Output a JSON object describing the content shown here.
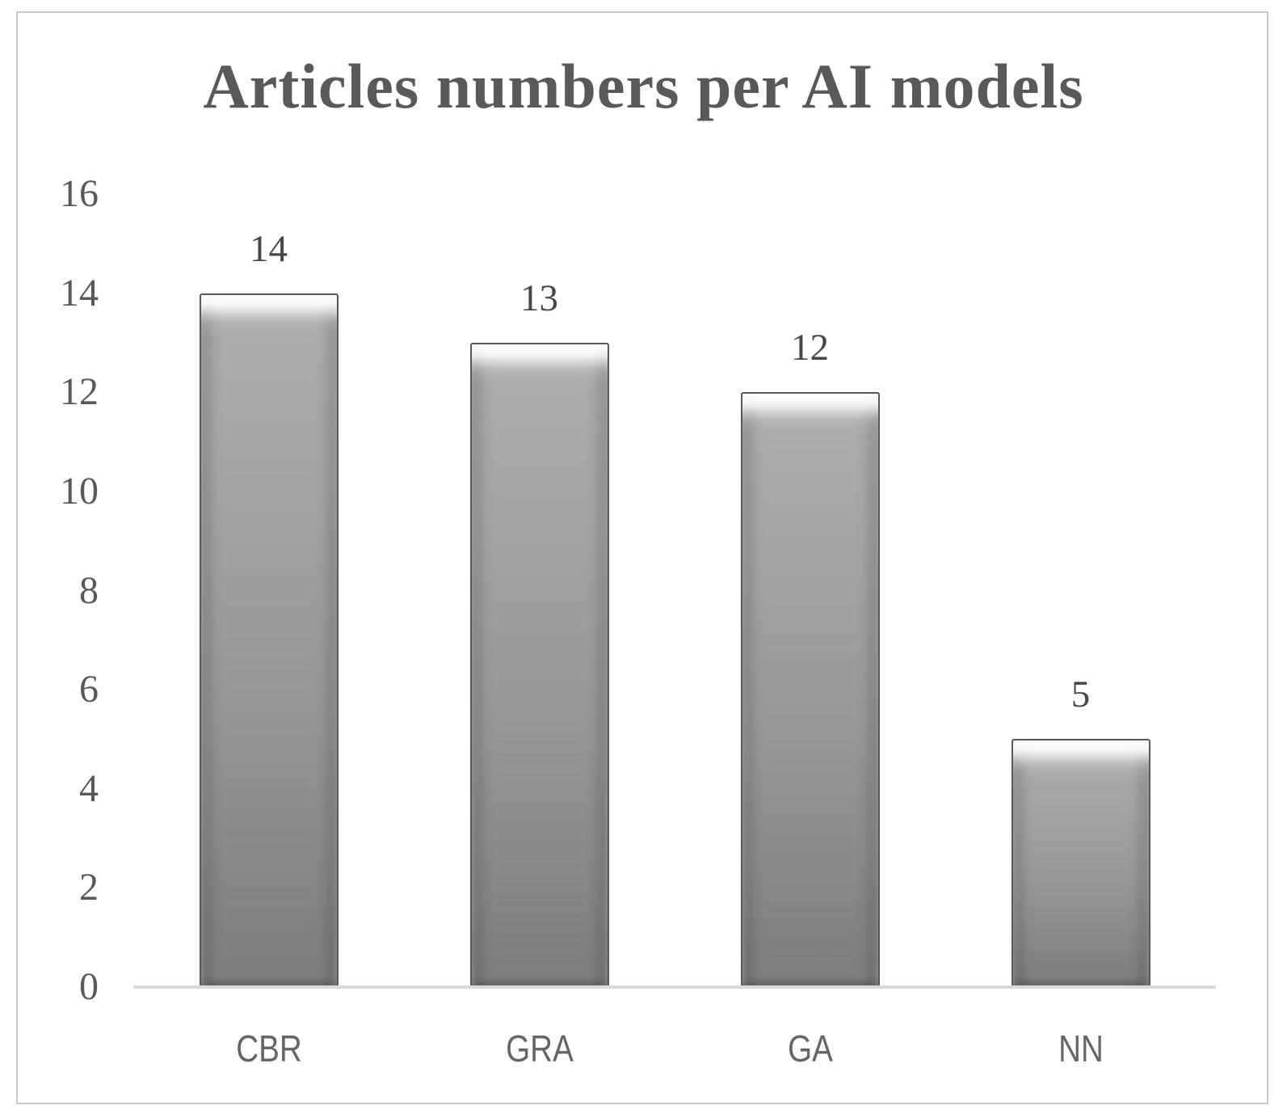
{
  "chart_data": {
    "type": "bar",
    "title": "Articles numbers per AI models",
    "categories": [
      "CBR",
      "GRA",
      "GA",
      "NN"
    ],
    "values": [
      14,
      13,
      12,
      5
    ],
    "data_labels": [
      "14",
      "13",
      "12",
      "5"
    ],
    "xlabel": "",
    "ylabel": "",
    "ylim": [
      0,
      16
    ],
    "yticks": [
      0,
      2,
      4,
      6,
      8,
      10,
      12,
      14,
      16
    ],
    "grid": false,
    "legend": "none",
    "colors": {
      "bar_fill": "#9a9a9a",
      "bar_border": "#585858",
      "title_text": "#595959",
      "axis_tick_text": "#595959",
      "category_text": "#666666",
      "value_label_text": "#474747",
      "axis_line": "#dadada",
      "frame_border": "#c9c9c9",
      "background": "#ffffff"
    }
  }
}
